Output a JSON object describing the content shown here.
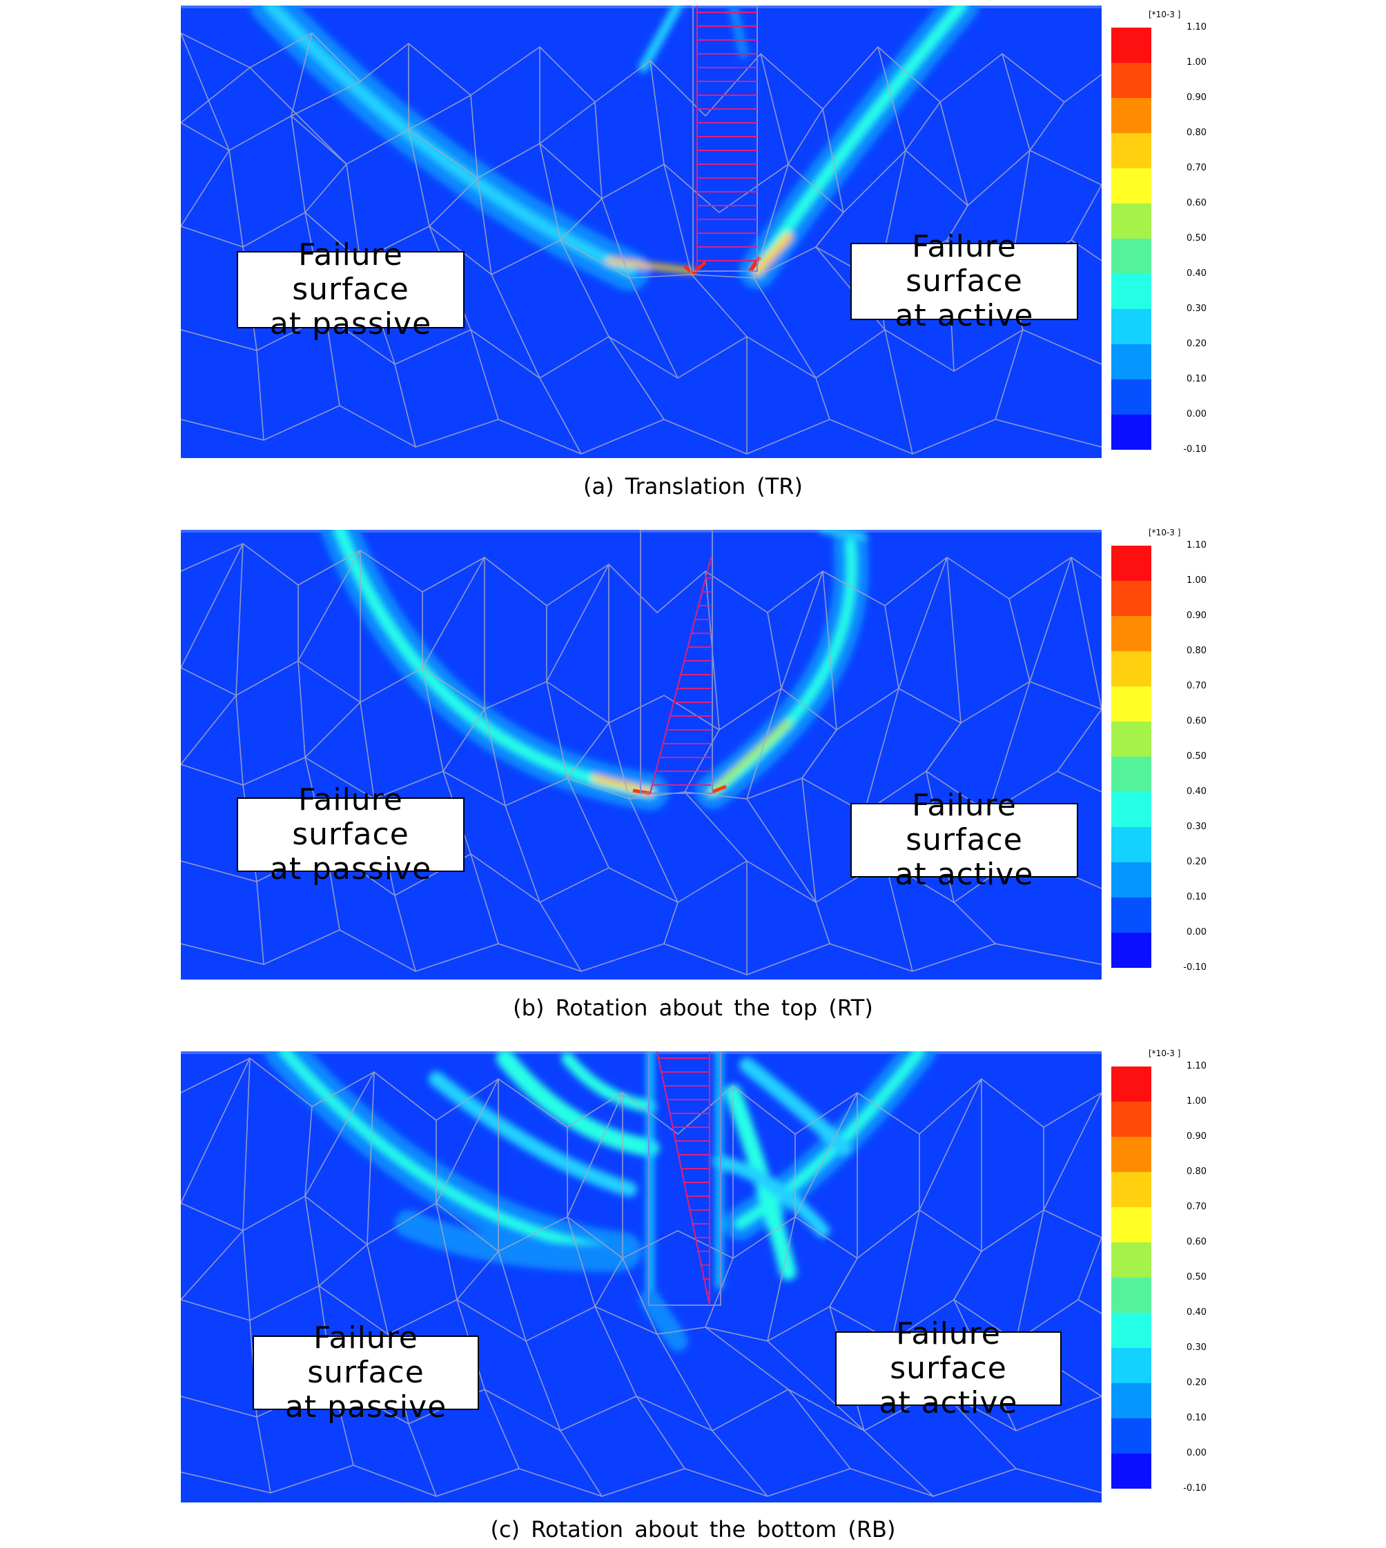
{
  "colorbar": {
    "unit": "[*10-3 ]",
    "ticks": [
      "1.10",
      "1.00",
      "0.90",
      "0.80",
      "0.70",
      "0.60",
      "0.50",
      "0.40",
      "0.30",
      "0.20",
      "0.10",
      "0.00",
      "-0.10"
    ],
    "colors": [
      "#ff1010",
      "#ff4a0a",
      "#ff8c00",
      "#ffcf10",
      "#ffff25",
      "#a4f24a",
      "#55f29c",
      "#25ffe6",
      "#14d2ff",
      "#0596ff",
      "#0550ff",
      "#0a10ff"
    ]
  },
  "panels": [
    {
      "id": "a",
      "caption": "(a) Translation (TR)",
      "passive_label": [
        "Failure surface",
        "at passive"
      ],
      "active_label": [
        "Failure surface",
        "at active"
      ]
    },
    {
      "id": "b",
      "caption": "(b) Rotation about the top (RT)",
      "passive_label": [
        "Failure surface",
        "at passive"
      ],
      "active_label": [
        "Failure surface",
        "at active"
      ]
    },
    {
      "id": "c",
      "caption": "(c) Rotation about the bottom (RB)",
      "passive_label": [
        "Failure surface",
        "at passive"
      ],
      "active_label": [
        "Failure surface",
        "at active"
      ]
    }
  ]
}
